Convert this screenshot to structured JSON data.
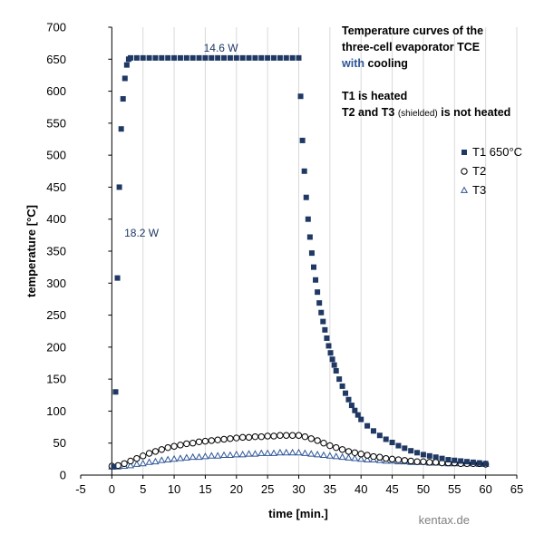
{
  "chart_data": {
    "type": "scatter",
    "title_lines": [
      [
        {
          "text": "Temperature curves of the"
        }
      ],
      [
        {
          "text": "three-cell evaporator TCE"
        }
      ],
      [
        {
          "text": "with",
          "accent": true
        },
        {
          "text": " cooling"
        }
      ],
      [
        {
          "text": ""
        }
      ],
      [
        {
          "text": "T1 is heated"
        }
      ],
      [
        {
          "text": "T2 and T3 "
        },
        {
          "text": "(shielded)",
          "small": true
        },
        {
          "text": " is not heated"
        }
      ]
    ],
    "xlabel": "time [min.]",
    "ylabel": "temperature [°C]",
    "xlim": [
      -5,
      65
    ],
    "ylim": [
      0,
      700
    ],
    "xticks": [
      -5,
      0,
      5,
      10,
      15,
      20,
      25,
      30,
      35,
      40,
      45,
      50,
      55,
      60,
      65
    ],
    "yticks": [
      0,
      50,
      100,
      150,
      200,
      250,
      300,
      350,
      400,
      450,
      500,
      550,
      600,
      650,
      700
    ],
    "grid": "vertical",
    "legend_position": "right",
    "annotations": [
      {
        "text": "14.6 W",
        "x": 17.5,
        "y": 662
      },
      {
        "text": "18.2 W",
        "x": 2.0,
        "y": 373
      }
    ],
    "watermark": "kentax.de",
    "series": [
      {
        "name": "T1 650°C",
        "marker": "square",
        "color": "#1f3864",
        "x": [
          0.3,
          0.6,
          0.9,
          1.2,
          1.5,
          1.8,
          2.1,
          2.4,
          2.7,
          3.0,
          4,
          5,
          6,
          7,
          8,
          9,
          10,
          11,
          12,
          13,
          14,
          15,
          16,
          17,
          18,
          19,
          20,
          21,
          22,
          23,
          24,
          25,
          26,
          27,
          28,
          29,
          30,
          30.3,
          30.6,
          30.9,
          31.2,
          31.5,
          31.8,
          32.1,
          32.4,
          32.7,
          33.0,
          33.3,
          33.6,
          33.9,
          34.2,
          34.5,
          34.8,
          35.1,
          35.4,
          35.7,
          36.0,
          36.5,
          37.0,
          37.5,
          38.0,
          38.5,
          39.0,
          39.5,
          40.0,
          41,
          42,
          43,
          44,
          45,
          46,
          47,
          48,
          49,
          50,
          51,
          52,
          53,
          54,
          55,
          56,
          57,
          58,
          59,
          60
        ],
        "y": [
          13,
          130,
          308,
          450,
          541,
          588,
          620,
          641,
          650,
          652,
          652,
          652,
          652,
          652,
          652,
          652,
          652,
          652,
          652,
          652,
          652,
          652,
          652,
          652,
          652,
          652,
          652,
          652,
          652,
          652,
          652,
          652,
          652,
          652,
          652,
          652,
          652,
          592,
          523,
          475,
          434,
          400,
          372,
          347,
          325,
          305,
          286,
          269,
          254,
          240,
          227,
          214,
          202,
          191,
          181,
          172,
          163,
          150,
          139,
          128,
          118,
          109,
          101,
          94,
          87,
          77,
          69,
          62,
          56,
          51,
          46,
          42,
          38,
          35,
          32,
          30,
          28,
          26,
          24,
          23,
          22,
          21,
          20,
          19,
          18
        ]
      },
      {
        "name": "T2",
        "marker": "circle",
        "color": "#000000",
        "x": [
          0,
          1,
          2,
          3,
          4,
          5,
          6,
          7,
          8,
          9,
          10,
          11,
          12,
          13,
          14,
          15,
          16,
          17,
          18,
          19,
          20,
          21,
          22,
          23,
          24,
          25,
          26,
          27,
          28,
          29,
          30,
          31,
          32,
          33,
          34,
          35,
          36,
          37,
          38,
          39,
          40,
          41,
          42,
          43,
          44,
          45,
          46,
          47,
          48,
          49,
          50,
          51,
          52,
          53,
          54,
          55,
          56,
          57,
          58,
          59,
          60
        ],
        "y": [
          14,
          15,
          18,
          22,
          26,
          30,
          34,
          37,
          40,
          43,
          45,
          47,
          49,
          50,
          52,
          53,
          54,
          55,
          56,
          57,
          58,
          59,
          59,
          60,
          60,
          61,
          61,
          62,
          62,
          62,
          62,
          60,
          57,
          54,
          50,
          46,
          43,
          40,
          37,
          35,
          33,
          31,
          29,
          28,
          26,
          25,
          24,
          23,
          22,
          21,
          21,
          20,
          20,
          19,
          19,
          19,
          18,
          18,
          18,
          18,
          17
        ]
      },
      {
        "name": "T3",
        "marker": "triangle",
        "color": "#2e5597",
        "x": [
          0,
          1,
          2,
          3,
          4,
          5,
          6,
          7,
          8,
          9,
          10,
          11,
          12,
          13,
          14,
          15,
          16,
          17,
          18,
          19,
          20,
          21,
          22,
          23,
          24,
          25,
          26,
          27,
          28,
          29,
          30,
          31,
          32,
          33,
          34,
          35,
          36,
          37,
          38,
          39,
          40,
          41,
          42,
          43,
          44,
          45,
          46,
          47,
          48,
          49,
          50,
          51,
          52,
          53,
          54,
          55,
          56,
          57,
          58,
          59,
          60
        ],
        "y": [
          13,
          13,
          14,
          15,
          17,
          18,
          20,
          21,
          23,
          24,
          25,
          26,
          27,
          28,
          28,
          29,
          30,
          30,
          31,
          31,
          32,
          32,
          33,
          33,
          34,
          34,
          34,
          35,
          35,
          35,
          35,
          34,
          33,
          32,
          31,
          30,
          29,
          28,
          27,
          26,
          25,
          24,
          24,
          23,
          22,
          22,
          21,
          21,
          20,
          20,
          20,
          19,
          19,
          19,
          18,
          18,
          18,
          18,
          18,
          17,
          17
        ]
      }
    ]
  }
}
